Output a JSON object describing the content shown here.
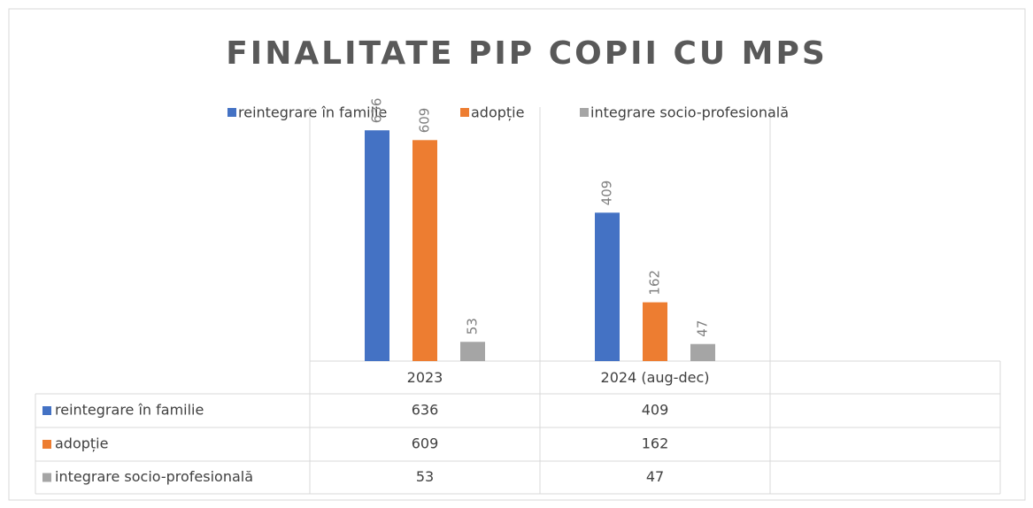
{
  "chart_data": {
    "type": "bar",
    "title": "FINALITATE PIP COPII CU MPS",
    "categories": [
      "2023",
      "2024 (aug-dec)",
      null
    ],
    "series": [
      {
        "name": "reintegrare în familie",
        "color": "#4472c4",
        "values": [
          636,
          409,
          null
        ]
      },
      {
        "name": "adopție",
        "color": "#ed7d31",
        "values": [
          609,
          162,
          null
        ]
      },
      {
        "name": "integrare socio-profesională",
        "color": "#a5a5a5",
        "values": [
          53,
          47,
          null
        ]
      }
    ],
    "ylim": [
      0,
      700
    ],
    "legend": "top",
    "data_table": true
  }
}
